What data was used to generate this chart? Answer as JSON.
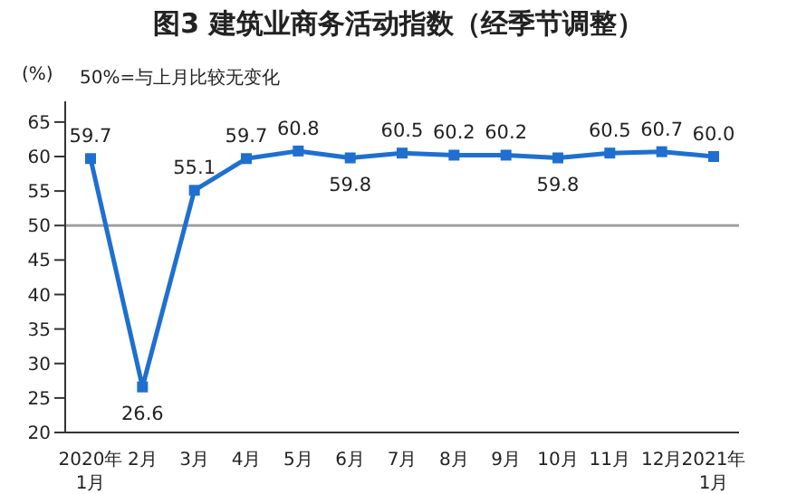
{
  "chart_data": {
    "type": "line",
    "title": "图3  建筑业商务活动指数（经季节调整）",
    "ylabel": "(%)",
    "annotations": [
      "50%=与上月比较无变化"
    ],
    "categories": [
      "2020年\n1月",
      "2月",
      "3月",
      "4月",
      "5月",
      "6月",
      "7月",
      "8月",
      "9月",
      "10月",
      "11月",
      "12月",
      "2021年\n1月"
    ],
    "series": [
      {
        "color": "#1f6fd0",
        "values": [
          59.7,
          26.6,
          55.1,
          59.7,
          60.8,
          59.8,
          60.5,
          60.2,
          60.2,
          59.8,
          60.5,
          60.7,
          60.0
        ],
        "value_labels": [
          "59.7",
          "26.6",
          "55.1",
          "59.7",
          "60.8",
          "59.8",
          "60.5",
          "60.2",
          "60.2",
          "59.8",
          "60.5",
          "60.7",
          "60.0"
        ]
      }
    ],
    "ylim": [
      20,
      68
    ],
    "yticks": [
      20,
      25,
      30,
      35,
      40,
      45,
      50,
      55,
      60,
      65
    ],
    "ref_lines": [
      {
        "axis": "y",
        "value": 50,
        "color": "#a0a0a0"
      }
    ],
    "marker": "square",
    "grid": false,
    "legend": false
  }
}
